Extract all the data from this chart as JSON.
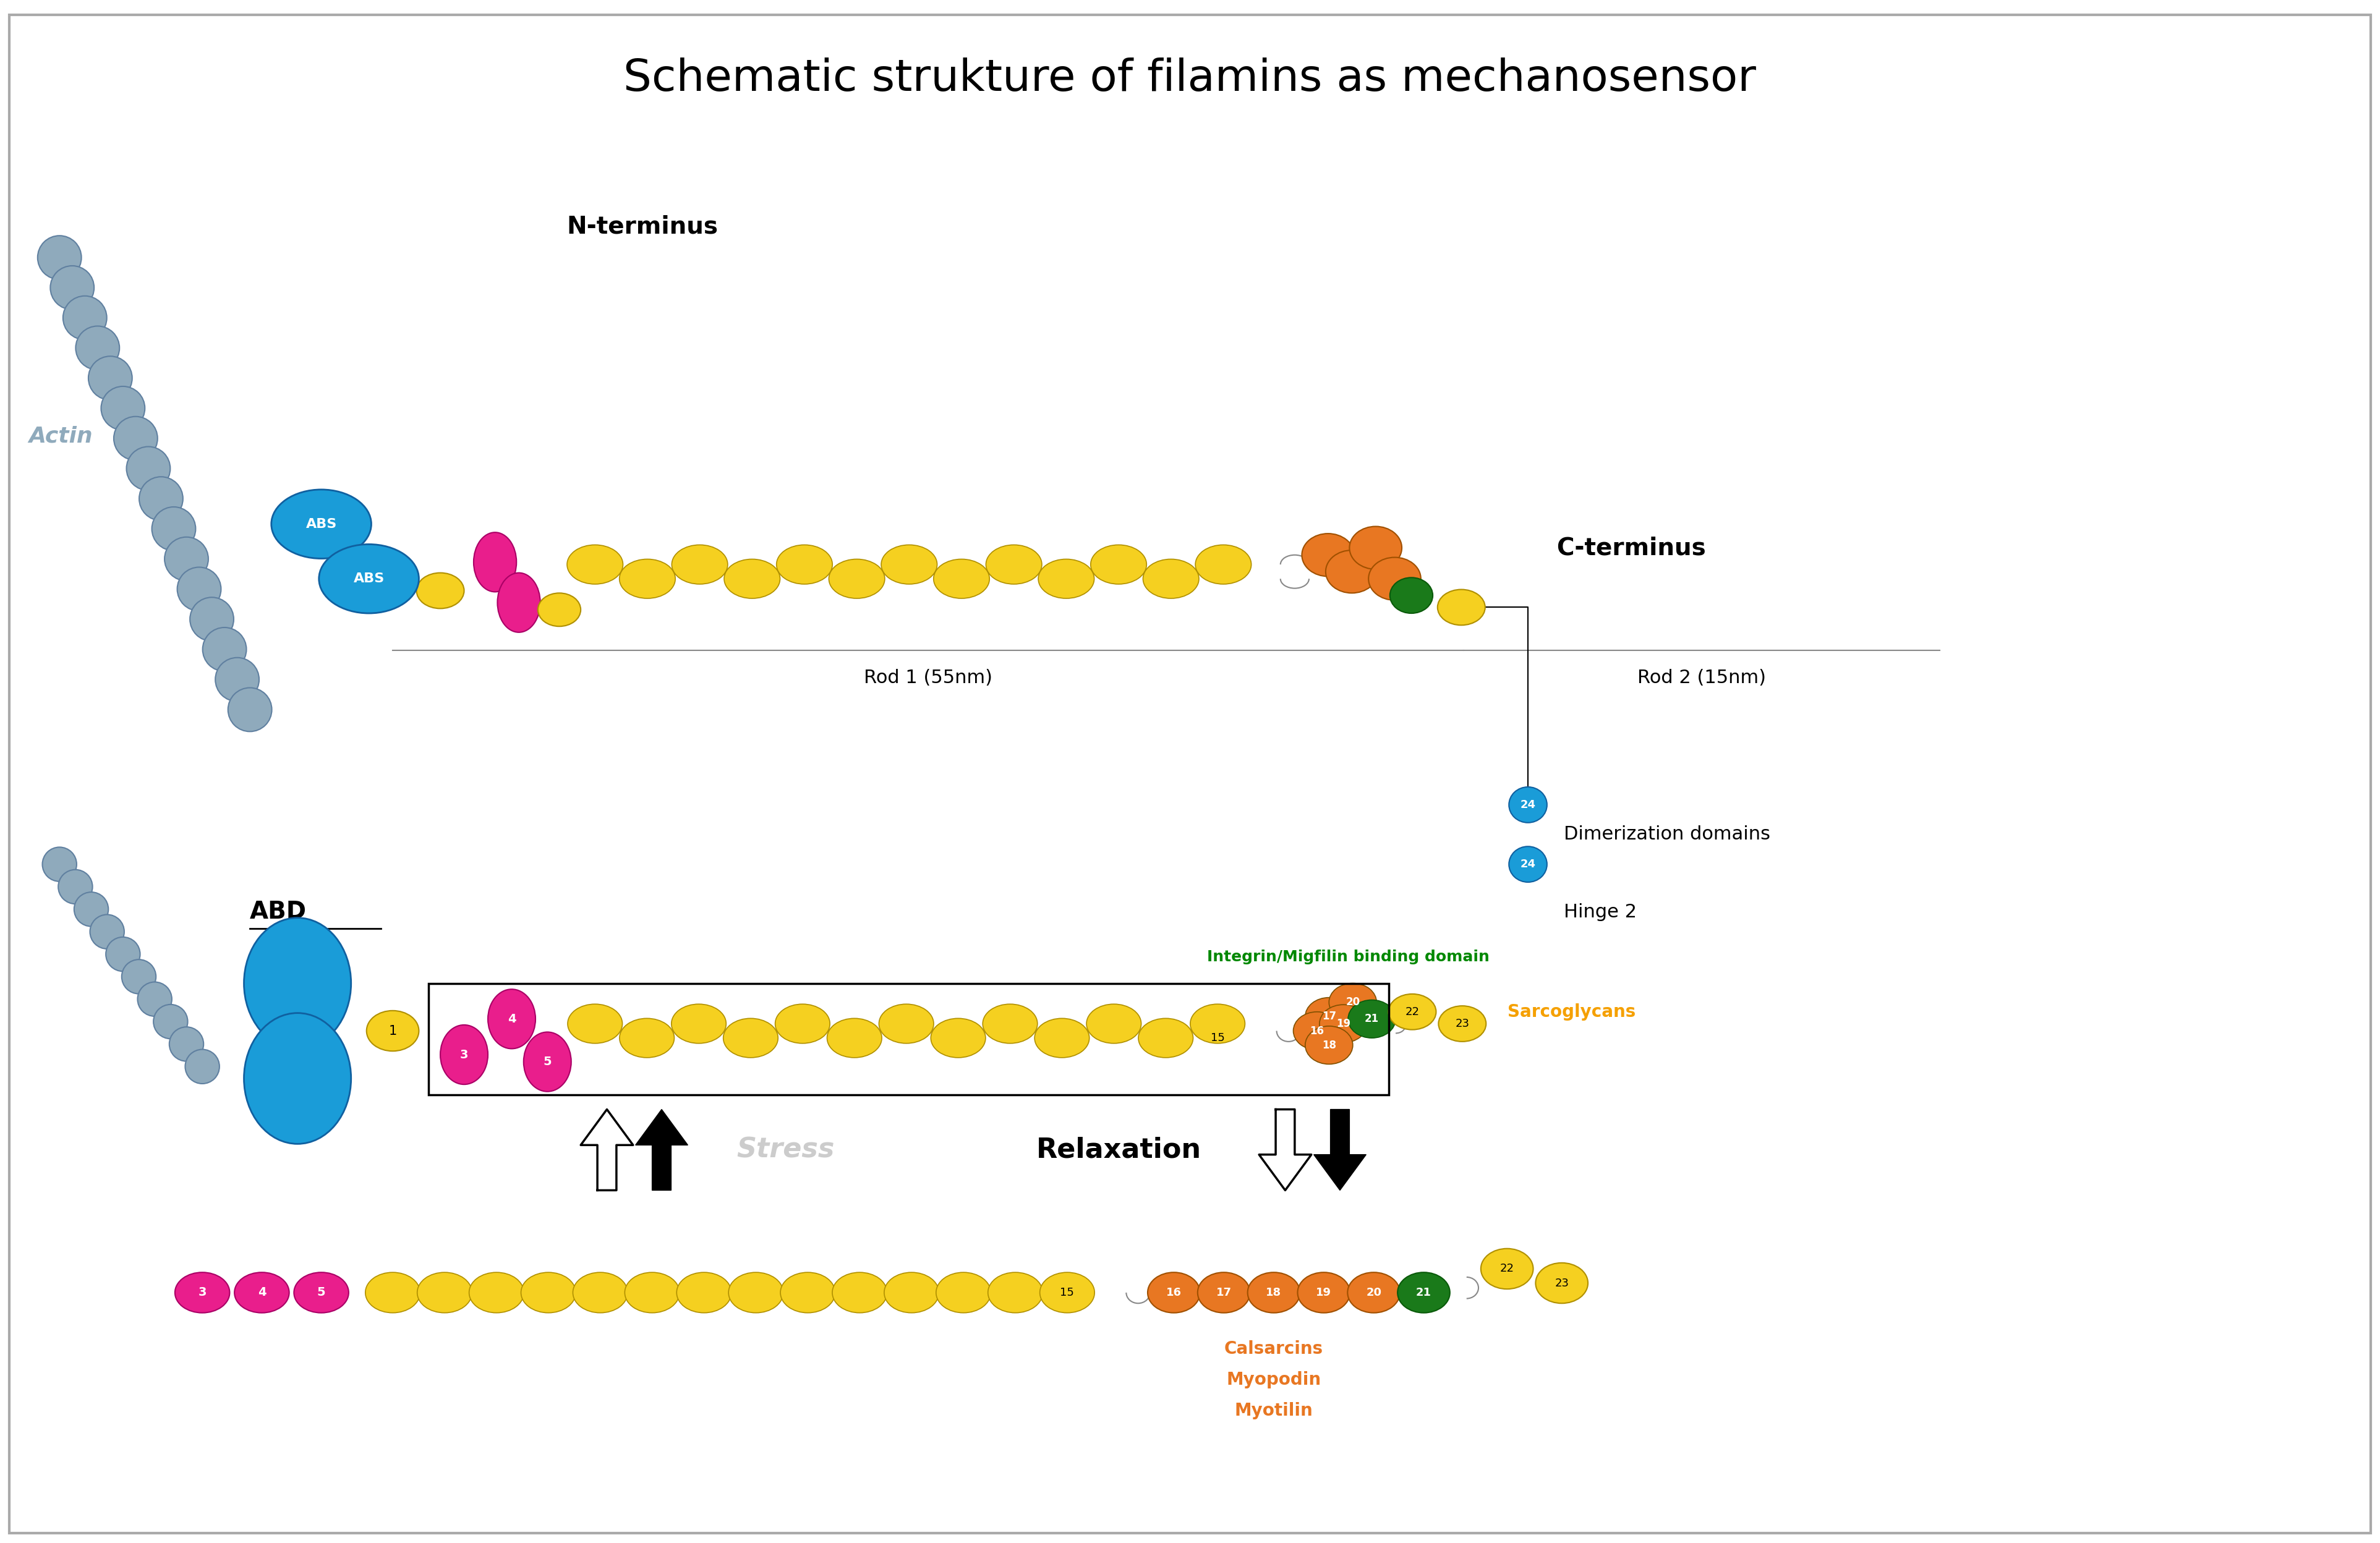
{
  "title": "Schematic strukture of filamins as mechanosensor",
  "title_fontsize": 52,
  "bg_color": "#ffffff",
  "border_color": "#aaaaaa",
  "colors": {
    "actin": "#8faabc",
    "ABS": "#1a9cd8",
    "magenta": "#e91e8c",
    "yellow": "#f5d020",
    "orange": "#e87722",
    "green": "#1a7a1a",
    "dimerization": "#1a9cd8",
    "sarcoglycans_text": "#f5a000",
    "calsarcins_text": "#e87722"
  },
  "labels": {
    "actin": "Actin",
    "n_terminus": "N-terminus",
    "c_terminus": "C-terminus",
    "ABD": "ABD",
    "rod1": "Rod 1 (55nm)",
    "rod2": "Rod 2 (15nm)",
    "hinge2": "Hinge 2",
    "dimerization": "Dimerization domains",
    "sarcoglycans": "Sarcoglycans",
    "integrin": "Integrin/Migfilin binding domain",
    "stress": "Stress",
    "relaxation": "Relaxation",
    "calsarcins": "Calsarcins",
    "myopodin": "Myopodin",
    "myotilin": "Myotilin"
  }
}
